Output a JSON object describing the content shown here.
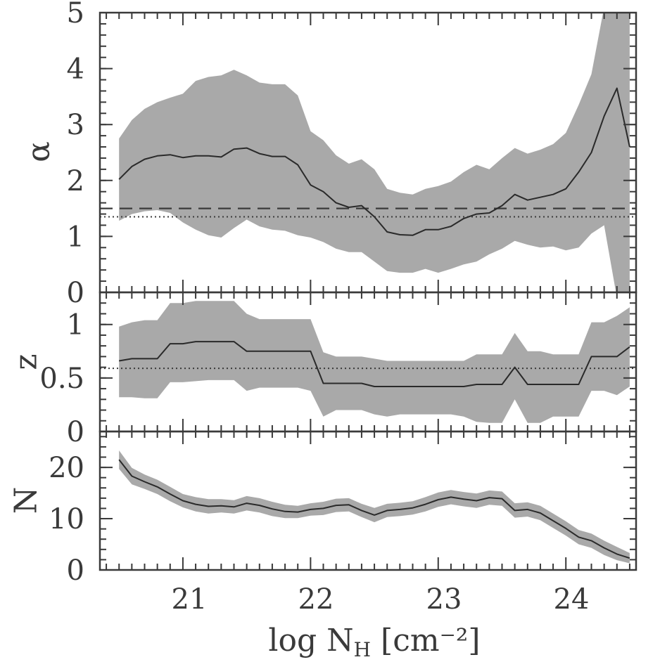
{
  "chart_data": {
    "type": "line",
    "x_title": "log N",
    "x_title_sub": "H",
    "x_title_units": "[cm⁻²]",
    "xlim": [
      20.35,
      24.55
    ],
    "x_ticks": [
      "21",
      "22",
      "23",
      "24"
    ],
    "x": [
      20.5,
      20.6,
      20.7,
      20.8,
      20.9,
      21.0,
      21.1,
      21.2,
      21.3,
      21.4,
      21.5,
      21.6,
      21.7,
      21.8,
      21.9,
      22.0,
      22.1,
      22.2,
      22.3,
      22.4,
      22.5,
      22.6,
      22.7,
      22.8,
      22.9,
      23.0,
      23.1,
      23.2,
      23.3,
      23.4,
      23.5,
      23.6,
      23.7,
      23.8,
      23.9,
      24.0,
      24.1,
      24.2,
      24.3,
      24.4,
      24.5
    ],
    "panels": [
      {
        "ylabel": "α",
        "ylim": [
          0,
          5
        ],
        "y_ticks": [
          "0",
          "1",
          "2",
          "3",
          "4",
          "5"
        ],
        "median": [
          2.02,
          2.25,
          2.38,
          2.44,
          2.46,
          2.41,
          2.44,
          2.44,
          2.42,
          2.56,
          2.58,
          2.48,
          2.43,
          2.43,
          2.28,
          1.92,
          1.8,
          1.6,
          1.52,
          1.55,
          1.35,
          1.08,
          1.03,
          1.02,
          1.12,
          1.12,
          1.18,
          1.32,
          1.4,
          1.42,
          1.55,
          1.75,
          1.65,
          1.7,
          1.75,
          1.85,
          2.15,
          2.5,
          3.15,
          3.65,
          2.6
        ],
        "upper": [
          2.75,
          3.08,
          3.28,
          3.4,
          3.48,
          3.55,
          3.78,
          3.85,
          3.88,
          3.98,
          3.88,
          3.75,
          3.72,
          3.72,
          3.52,
          2.88,
          2.72,
          2.45,
          2.3,
          2.38,
          2.2,
          1.85,
          1.78,
          1.75,
          1.85,
          1.9,
          1.98,
          2.15,
          2.28,
          2.2,
          2.4,
          2.58,
          2.48,
          2.55,
          2.65,
          2.85,
          3.35,
          3.9,
          5.1,
          5.8,
          5.4
        ],
        "lower": [
          1.28,
          1.4,
          1.45,
          1.47,
          1.42,
          1.25,
          1.12,
          1.02,
          0.98,
          1.15,
          1.3,
          1.18,
          1.12,
          1.1,
          1.02,
          0.98,
          0.9,
          0.78,
          0.72,
          0.72,
          0.55,
          0.38,
          0.35,
          0.35,
          0.42,
          0.35,
          0.42,
          0.5,
          0.55,
          0.68,
          0.78,
          0.92,
          0.85,
          0.8,
          0.82,
          0.75,
          0.8,
          1.05,
          1.2,
          -0.1,
          -0.1
        ],
        "hlines": [
          {
            "y": 1.5,
            "style": "dashed"
          },
          {
            "y": 1.35,
            "style": "dotted"
          }
        ]
      },
      {
        "ylabel": "z",
        "ylim": [
          0,
          1.3
        ],
        "y_ticks": [
          {
            "value": 0,
            "label": "0"
          },
          {
            "value": 0.5,
            "label": "0.5"
          },
          {
            "value": 1,
            "label": "1"
          }
        ],
        "median": [
          0.66,
          0.68,
          0.68,
          0.68,
          0.82,
          0.82,
          0.84,
          0.84,
          0.84,
          0.84,
          0.75,
          0.75,
          0.75,
          0.75,
          0.75,
          0.75,
          0.45,
          0.45,
          0.45,
          0.45,
          0.42,
          0.42,
          0.42,
          0.42,
          0.42,
          0.42,
          0.42,
          0.42,
          0.44,
          0.44,
          0.44,
          0.6,
          0.44,
          0.44,
          0.44,
          0.44,
          0.44,
          0.7,
          0.7,
          0.7,
          0.79
        ],
        "upper": [
          0.98,
          1.02,
          1.04,
          1.04,
          1.2,
          1.2,
          1.22,
          1.22,
          1.22,
          1.22,
          1.1,
          1.05,
          1.05,
          1.05,
          1.05,
          1.05,
          0.74,
          0.7,
          0.7,
          0.7,
          0.68,
          0.66,
          0.66,
          0.66,
          0.66,
          0.66,
          0.66,
          0.66,
          0.72,
          0.72,
          0.72,
          0.92,
          0.75,
          0.75,
          0.72,
          0.72,
          0.72,
          1.02,
          1.02,
          1.08,
          1.16
        ],
        "lower": [
          0.32,
          0.32,
          0.31,
          0.31,
          0.46,
          0.46,
          0.47,
          0.48,
          0.48,
          0.48,
          0.38,
          0.41,
          0.41,
          0.41,
          0.41,
          0.38,
          0.14,
          0.2,
          0.2,
          0.2,
          0.16,
          0.14,
          0.16,
          0.16,
          0.16,
          0.16,
          0.16,
          0.14,
          0.09,
          0.08,
          0.08,
          0.3,
          0.08,
          0.08,
          0.14,
          0.14,
          0.14,
          0.38,
          0.38,
          0.34,
          0.42
        ],
        "hlines": [
          {
            "y": 0.59,
            "style": "dotted"
          }
        ]
      },
      {
        "ylabel": "N",
        "ylim": [
          0,
          27
        ],
        "y_ticks": [
          {
            "value": 0,
            "label": "0"
          },
          {
            "value": 10,
            "label": "10"
          },
          {
            "value": 20,
            "label": "20"
          }
        ],
        "median": [
          21.5,
          18.3,
          17.2,
          16.2,
          14.8,
          13.5,
          12.8,
          12.4,
          12.5,
          12.3,
          13.0,
          12.6,
          11.9,
          11.4,
          11.3,
          11.8,
          12.0,
          12.6,
          12.7,
          11.6,
          10.7,
          11.6,
          11.8,
          12.1,
          12.8,
          13.7,
          14.2,
          13.8,
          13.5,
          14.1,
          13.9,
          11.6,
          11.8,
          11.1,
          9.6,
          8.1,
          6.4,
          5.7,
          4.3,
          3.1,
          2.3
        ],
        "upper": [
          23.3,
          19.9,
          18.6,
          17.6,
          16.2,
          14.8,
          14.2,
          13.8,
          13.8,
          13.6,
          14.4,
          14.0,
          13.3,
          12.7,
          12.5,
          13.0,
          13.3,
          13.9,
          14.0,
          12.9,
          12.1,
          12.9,
          13.1,
          13.4,
          14.2,
          15.1,
          15.6,
          15.2,
          14.9,
          15.5,
          15.3,
          13.0,
          13.2,
          12.5,
          11.0,
          9.5,
          7.8,
          7.1,
          5.7,
          4.5,
          3.3
        ],
        "lower": [
          19.7,
          16.7,
          15.8,
          14.8,
          13.4,
          12.2,
          11.4,
          11.0,
          11.2,
          11.0,
          11.6,
          11.2,
          10.5,
          10.1,
          10.1,
          10.6,
          10.7,
          11.3,
          11.4,
          10.3,
          9.3,
          10.3,
          10.5,
          10.8,
          11.4,
          12.3,
          12.8,
          12.4,
          12.1,
          12.7,
          12.5,
          10.2,
          10.4,
          9.7,
          8.2,
          6.7,
          5.0,
          4.3,
          2.9,
          1.9,
          1.3
        ]
      }
    ]
  }
}
